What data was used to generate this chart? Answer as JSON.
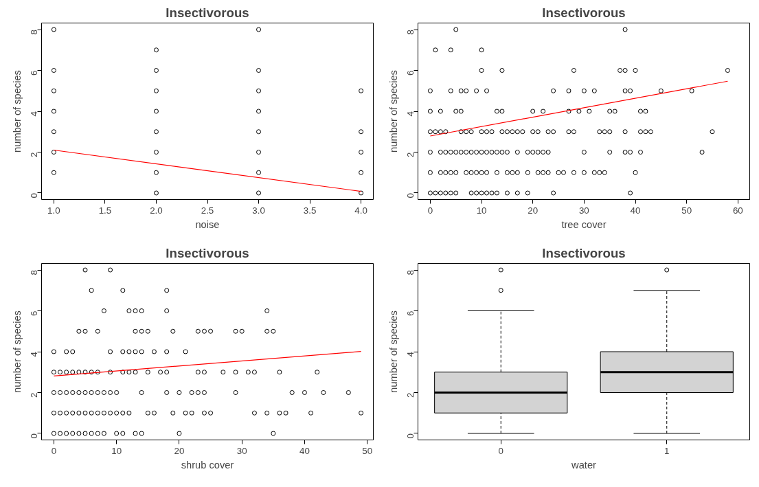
{
  "chart_data": [
    {
      "type": "scatter",
      "title": "Insectivorous",
      "xlabel": "noise",
      "ylabel": "number of species",
      "xlim": [
        0.88,
        4.12
      ],
      "ylim": [
        -0.32,
        8.32
      ],
      "xticks": [
        {
          "value": 1,
          "label": "1.0"
        },
        {
          "value": 1.5,
          "label": "1.5"
        },
        {
          "value": 2,
          "label": "2.0"
        },
        {
          "value": 2.5,
          "label": "2.5"
        },
        {
          "value": 3,
          "label": "3.0"
        },
        {
          "value": 3.5,
          "label": "3.5"
        },
        {
          "value": 4,
          "label": "4.0"
        }
      ],
      "yticks": [
        0,
        2,
        4,
        6,
        8
      ],
      "series": [
        {
          "type": "scatter",
          "marker": "circle",
          "color": "#000000",
          "x": [
            1,
            1,
            1,
            1,
            1,
            1,
            1,
            2,
            2,
            2,
            2,
            2,
            2,
            2,
            2,
            3,
            3,
            3,
            3,
            3,
            3,
            3,
            3,
            4,
            4,
            4,
            4,
            4
          ],
          "values": [
            1,
            2,
            3,
            4,
            5,
            6,
            8,
            0,
            1,
            2,
            3,
            4,
            5,
            6,
            7,
            0,
            1,
            2,
            3,
            4,
            5,
            6,
            8,
            0,
            1,
            2,
            3,
            5
          ]
        },
        {
          "type": "line",
          "color": "#ff0000",
          "x": [
            1,
            4
          ],
          "values": [
            2.1,
            0.08
          ]
        }
      ]
    },
    {
      "type": "scatter",
      "title": "Insectivorous",
      "xlabel": "tree cover",
      "ylabel": "number of species",
      "xlim": [
        -2.4,
        62.3
      ],
      "ylim": [
        -0.32,
        8.32
      ],
      "xticks": [
        0,
        10,
        20,
        30,
        40,
        50,
        60
      ],
      "yticks": [
        0,
        2,
        4,
        6,
        8
      ],
      "series": [
        {
          "type": "scatter",
          "marker": "circle",
          "color": "#000000",
          "x": [
            5,
            38,
            1,
            4,
            10,
            10,
            14,
            28,
            37,
            38,
            40,
            58,
            0,
            4,
            6,
            7,
            9,
            11,
            24,
            27,
            30,
            32,
            38,
            39,
            45,
            51,
            0,
            2,
            5,
            6,
            13,
            14,
            20,
            22,
            27,
            29,
            31,
            35,
            36,
            41,
            42,
            0,
            1,
            2,
            3,
            6,
            7,
            8,
            10,
            11,
            12,
            14,
            15,
            16,
            17,
            18,
            20,
            21,
            23,
            24,
            27,
            28,
            33,
            34,
            35,
            38,
            41,
            42,
            43,
            55,
            0,
            2,
            3,
            4,
            5,
            6,
            7,
            8,
            9,
            10,
            11,
            12,
            13,
            14,
            15,
            17,
            19,
            20,
            21,
            22,
            23,
            30,
            35,
            38,
            39,
            41,
            53,
            0,
            2,
            3,
            4,
            5,
            7,
            8,
            9,
            10,
            11,
            13,
            15,
            16,
            17,
            19,
            21,
            22,
            23,
            25,
            26,
            28,
            30,
            32,
            33,
            34,
            40,
            0,
            1,
            2,
            3,
            4,
            5,
            8,
            9,
            10,
            11,
            12,
            13,
            15,
            17,
            19,
            24,
            39
          ],
          "values": [
            8,
            8,
            7,
            7,
            7,
            6,
            6,
            6,
            6,
            6,
            6,
            6,
            5,
            5,
            5,
            5,
            5,
            5,
            5,
            5,
            5,
            5,
            5,
            5,
            5,
            5,
            4,
            4,
            4,
            4,
            4,
            4,
            4,
            4,
            4,
            4,
            4,
            4,
            4,
            4,
            4,
            3,
            3,
            3,
            3,
            3,
            3,
            3,
            3,
            3,
            3,
            3,
            3,
            3,
            3,
            3,
            3,
            3,
            3,
            3,
            3,
            3,
            3,
            3,
            3,
            3,
            3,
            3,
            3,
            3,
            2,
            2,
            2,
            2,
            2,
            2,
            2,
            2,
            2,
            2,
            2,
            2,
            2,
            2,
            2,
            2,
            2,
            2,
            2,
            2,
            2,
            2,
            2,
            2,
            2,
            2,
            2,
            1,
            1,
            1,
            1,
            1,
            1,
            1,
            1,
            1,
            1,
            1,
            1,
            1,
            1,
            1,
            1,
            1,
            1,
            1,
            1,
            1,
            1,
            1,
            1,
            1,
            1,
            0,
            0,
            0,
            0,
            0,
            0,
            0,
            0,
            0,
            0,
            0,
            0,
            0,
            0,
            0,
            0,
            0
          ]
        },
        {
          "type": "line",
          "color": "#ff0000",
          "x": [
            0,
            58
          ],
          "values": [
            2.79,
            5.47
          ]
        }
      ]
    },
    {
      "type": "scatter",
      "title": "Insectivorous",
      "xlabel": "shrub cover",
      "ylabel": "number of species",
      "xlim": [
        -1.96,
        50.96
      ],
      "ylim": [
        -0.32,
        8.32
      ],
      "xticks": [
        0,
        10,
        20,
        30,
        40,
        50
      ],
      "yticks": [
        0,
        2,
        4,
        6,
        8
      ],
      "series": [
        {
          "type": "scatter",
          "marker": "circle",
          "color": "#000000",
          "x": [
            5,
            9,
            6,
            11,
            18,
            8,
            12,
            13,
            14,
            18,
            34,
            4,
            5,
            7,
            13,
            14,
            15,
            19,
            23,
            24,
            25,
            29,
            30,
            34,
            35,
            0,
            2,
            3,
            9,
            11,
            12,
            13,
            14,
            16,
            18,
            21,
            0,
            1,
            2,
            3,
            4,
            5,
            6,
            7,
            9,
            11,
            12,
            13,
            15,
            17,
            18,
            23,
            24,
            27,
            29,
            31,
            32,
            36,
            42,
            0,
            1,
            2,
            3,
            4,
            5,
            6,
            7,
            8,
            9,
            10,
            14,
            18,
            20,
            22,
            23,
            24,
            29,
            38,
            40,
            43,
            47,
            0,
            1,
            2,
            3,
            4,
            5,
            6,
            7,
            8,
            9,
            10,
            11,
            12,
            15,
            16,
            19,
            21,
            22,
            24,
            25,
            32,
            34,
            36,
            37,
            41,
            49,
            0,
            1,
            2,
            3,
            4,
            5,
            6,
            7,
            8,
            10,
            11,
            13,
            14,
            20,
            35
          ],
          "values": [
            8,
            8,
            7,
            7,
            7,
            6,
            6,
            6,
            6,
            6,
            6,
            5,
            5,
            5,
            5,
            5,
            5,
            5,
            5,
            5,
            5,
            5,
            5,
            5,
            5,
            4,
            4,
            4,
            4,
            4,
            4,
            4,
            4,
            4,
            4,
            4,
            3,
            3,
            3,
            3,
            3,
            3,
            3,
            3,
            3,
            3,
            3,
            3,
            3,
            3,
            3,
            3,
            3,
            3,
            3,
            3,
            3,
            3,
            3,
            2,
            2,
            2,
            2,
            2,
            2,
            2,
            2,
            2,
            2,
            2,
            2,
            2,
            2,
            2,
            2,
            2,
            2,
            2,
            2,
            2,
            2,
            1,
            1,
            1,
            1,
            1,
            1,
            1,
            1,
            1,
            1,
            1,
            1,
            1,
            1,
            1,
            1,
            1,
            1,
            1,
            1,
            1,
            1,
            1,
            1,
            1,
            1,
            0,
            0,
            0,
            0,
            0,
            0,
            0,
            0,
            0,
            0,
            0,
            0,
            0,
            0,
            0
          ]
        },
        {
          "type": "line",
          "color": "#ff0000",
          "x": [
            0,
            49
          ],
          "values": [
            2.81,
            4.01
          ]
        }
      ]
    },
    {
      "type": "box",
      "title": "Insectivorous",
      "xlabel": "water",
      "ylabel": "number of species",
      "categories": [
        "0",
        "1"
      ],
      "ylim": [
        -0.32,
        8.32
      ],
      "yticks": [
        0,
        2,
        4,
        6,
        8
      ],
      "color": "#d3d3d3",
      "boxes": [
        {
          "low": 0,
          "q1": 1,
          "median": 2,
          "q3": 3,
          "high": 6,
          "outliers": [
            7,
            8
          ]
        },
        {
          "low": 0,
          "q1": 2,
          "median": 3,
          "q3": 4,
          "high": 7,
          "outliers": [
            8
          ]
        }
      ]
    }
  ]
}
